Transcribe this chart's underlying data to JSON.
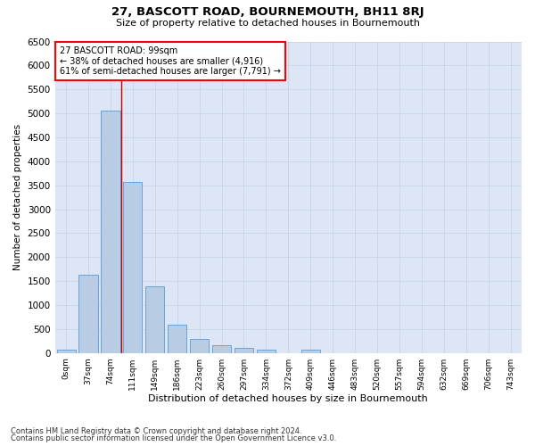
{
  "title": "27, BASCOTT ROAD, BOURNEMOUTH, BH11 8RJ",
  "subtitle": "Size of property relative to detached houses in Bournemouth",
  "xlabel": "Distribution of detached houses by size in Bournemouth",
  "ylabel": "Number of detached properties",
  "footnote1": "Contains HM Land Registry data © Crown copyright and database right 2024.",
  "footnote2": "Contains public sector information licensed under the Open Government Licence v3.0.",
  "bar_labels": [
    "0sqm",
    "37sqm",
    "74sqm",
    "111sqm",
    "149sqm",
    "186sqm",
    "223sqm",
    "260sqm",
    "297sqm",
    "334sqm",
    "372sqm",
    "409sqm",
    "446sqm",
    "483sqm",
    "520sqm",
    "557sqm",
    "594sqm",
    "632sqm",
    "669sqm",
    "706sqm",
    "743sqm"
  ],
  "bar_values": [
    75,
    1630,
    5060,
    3570,
    1390,
    590,
    300,
    155,
    105,
    70,
    0,
    65,
    0,
    0,
    0,
    0,
    0,
    0,
    0,
    0,
    0
  ],
  "bar_color": "#b8cce4",
  "bar_edge_color": "#5b9bd5",
  "grid_color": "#c8d4e8",
  "background_color": "#dce6f5",
  "annotation_line1": "27 BASCOTT ROAD: 99sqm",
  "annotation_line2": "← 38% of detached houses are smaller (4,916)",
  "annotation_line3": "61% of semi-detached houses are larger (7,791) →",
  "vline_x": 2.5,
  "vline_color": "#cc0000",
  "ylim": [
    0,
    6500
  ],
  "yticks": [
    0,
    500,
    1000,
    1500,
    2000,
    2500,
    3000,
    3500,
    4000,
    4500,
    5000,
    5500,
    6000,
    6500
  ]
}
